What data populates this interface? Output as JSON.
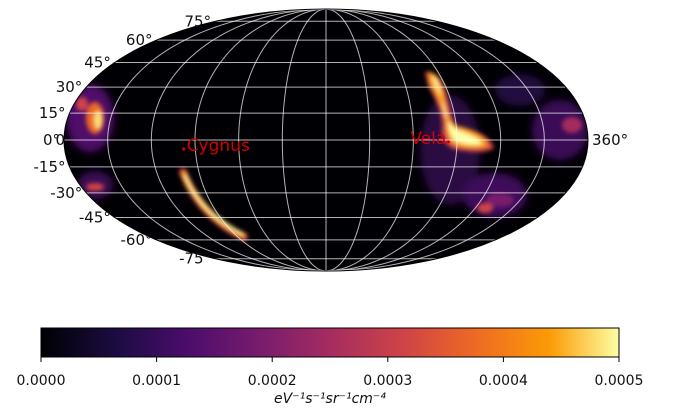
{
  "chart_data": {
    "type": "heatmap",
    "projection": "mollweide",
    "colormap": "inferno",
    "grid": true,
    "lat_ticks": [
      {
        "value": 75,
        "label": "75°"
      },
      {
        "value": 60,
        "label": "60°"
      },
      {
        "value": 45,
        "label": "45°"
      },
      {
        "value": 30,
        "label": "30°"
      },
      {
        "value": 15,
        "label": "15°"
      },
      {
        "value": 0,
        "label": "0°"
      },
      {
        "value": -15,
        "label": "-15°"
      },
      {
        "value": -30,
        "label": "-30°"
      },
      {
        "value": -45,
        "label": "-45°"
      },
      {
        "value": -60,
        "label": "-60°"
      },
      {
        "value": -75,
        "label": "-75°"
      }
    ],
    "lon_ticks": [
      {
        "value": 0,
        "label": "0"
      },
      {
        "value": 360,
        "label": "360°"
      }
    ],
    "sources": [
      {
        "name": "Cygnus",
        "lon": 82,
        "lat": -5
      },
      {
        "name": "Vela",
        "lon": 264,
        "lat": -1
      }
    ],
    "colorbar": {
      "min": 0.0,
      "max": 0.0005,
      "ticks": [
        "0.0000",
        "0.0001",
        "0.0002",
        "0.0003",
        "0.0004",
        "0.0005"
      ],
      "unit_label": "eV⁻¹s⁻¹sr⁻¹cm⁻⁴"
    }
  }
}
